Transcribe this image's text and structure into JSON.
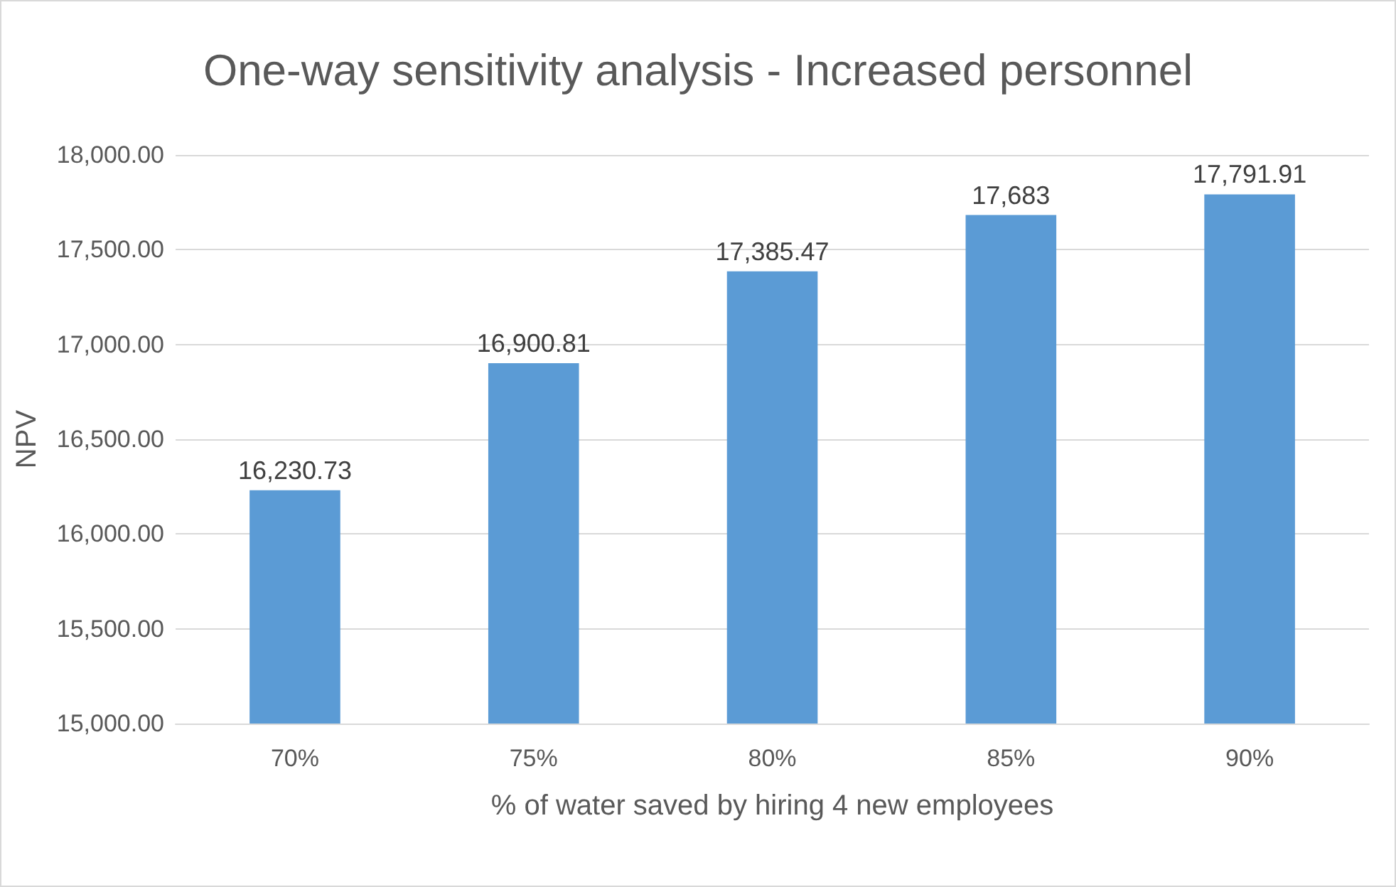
{
  "chart_data": {
    "type": "bar",
    "title": "One-way sensitivity analysis - Increased personnel",
    "xlabel": "% of water saved by hiring 4 new employees",
    "ylabel": "NPV",
    "categories": [
      "70%",
      "75%",
      "80%",
      "85%",
      "90%"
    ],
    "values": [
      16230.73,
      16900.81,
      17385.47,
      17683,
      17791.91
    ],
    "value_labels": [
      "16,230.73",
      "16,900.81",
      "17,385.47",
      "17,683",
      "17,791.91"
    ],
    "color": "#5b9bd5",
    "ylim": [
      15000,
      18000
    ],
    "yticks": [
      {
        "value": 15000,
        "label": "15,000.00"
      },
      {
        "value": 15500,
        "label": "15,500.00"
      },
      {
        "value": 16000,
        "label": "16,000.00"
      },
      {
        "value": 16500,
        "label": "16,500.00"
      },
      {
        "value": 17000,
        "label": "17,000.00"
      },
      {
        "value": 17500,
        "label": "17,500.00"
      },
      {
        "value": 18000,
        "label": "18,000.00"
      }
    ],
    "grid": true
  }
}
